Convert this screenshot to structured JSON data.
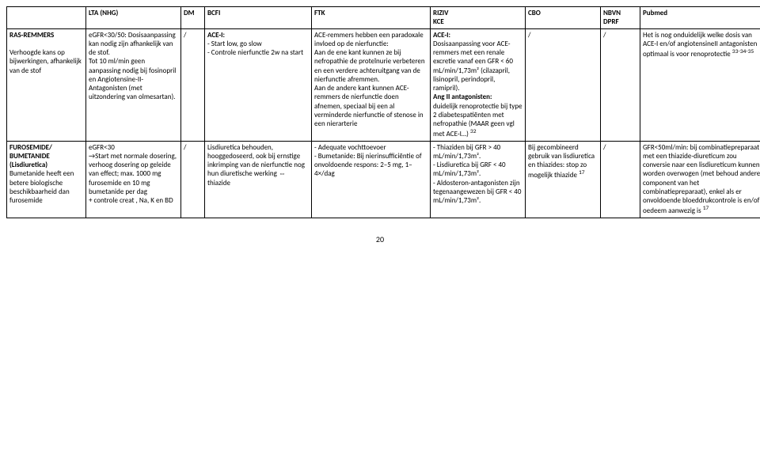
{
  "headers": {
    "col0": "",
    "col1": "LTA (NHG)",
    "col2": "DM",
    "col3": "BCFI",
    "col4": "FTK",
    "col5": "RIZIV\nKCE",
    "col6": "CBO",
    "col7": "NBVN\nDPRF",
    "col8": "Pubmed"
  },
  "rows": [
    {
      "c0": "<b>RAS-REMMERS</b>\n\nVerhoogde kans op bijwerkingen, afhankelijk van de stof",
      "c1": "eGFR<30/50: Dosisaanpassing kan nodig zijn afhankelijk van de stof.\nTot 10 ml/min geen aanpassing nodig bij fosinopril en Angiotensine-II-Antagonisten (met uitzondering van olmesartan).",
      "c2": "/",
      "c3": "<b>ACE-I:</b>\n- Start low, go slow\n- Controle nierfunctie 2w na start",
      "c4": "ACE-remmers hebben een paradoxale invloed op de nierfunctie:\nAan de ene kant kunnen ze bij nefropathie de proteïnurie verbeteren en een verdere achteruitgang van de nierfunctie afremmen.\nAan de andere kant kunnen ACE-remmers de nierfunctie doen afnemen, speciaal bij een al verminderde nierfunctie of stenose in een nierarterie",
      "c5": "<b>ACE-I:</b>\nDosisaanpassing voor ACE-remmers met een renale excretie vanaf een GFR < 60 mL/min/1,73m² (cilazapril, lisinopril, perindopril, ramipril).\n<b>Ang II antagonisten:</b>\nduidelijk renoprotectie bij type 2 diabetespatiënten met nefropathie (MAAR geen vgl met ACE-I…) <sup>32</sup>",
      "c6": "/",
      "c7": "/",
      "c8": "Het is nog onduidelijk welke dosis van ACE-I en/of angiotensineII antagonisten optimaal is voor renoprotectie <sup>33-34-35</sup>"
    },
    {
      "c0": "<b>FUROSEMIDE/ BUMETANIDE (Lisdiuretica)</b>\nBumetanide heeft een betere biologische beschikbaarheid dan furosemide",
      "c1": "eGFR<30\n→Start met normale dosering, verhoog dosering op geleide van effect; max. 1000 mg furosemide en 10 mg bumetanide per dag\n+ controle creat , Na, K en BD",
      "c2": "/",
      "c3": "Lisdiuretica behouden, hooggedoseerd, ook bij ernstige inkrimping van de nierfunctie nog hun diuretische werking ⇔ thiazide",
      "c4": "- Adequate vochttoevoer\n- Bumetanide: Bij nierinsufficiëntie of onvoldoende respons: 2–5 mg, 1–4×/dag",
      "c5": "- Thiaziden bij GFR > 40 mL/min/1,73m².\n- Lisdiuretica bij GRF < 40 mL/min/1,73m².\n- Aldosteron-antagonisten zijn tegenaangewezen bij  GFR < 40 mL/min/1,73m².",
      "c6": "Bij gecombineerd gebruik van lisdiuretica en thiazides: stop zo mogelijk thiazide <sup>17</sup>",
      "c7": "/",
      "c8": "GFR<50ml/min: bij combinatiepreparaat met een thiazide-diureticum zou conversie naar een lisdiureticum  kunnen worden overwogen (met  behoud andere component van het combinatiepreparaat), enkel als er onvoldoende bloeddrukcontrole is en/of oedeem aanwezig is <sup>17</sup>"
    }
  ],
  "pageNumber": "20"
}
